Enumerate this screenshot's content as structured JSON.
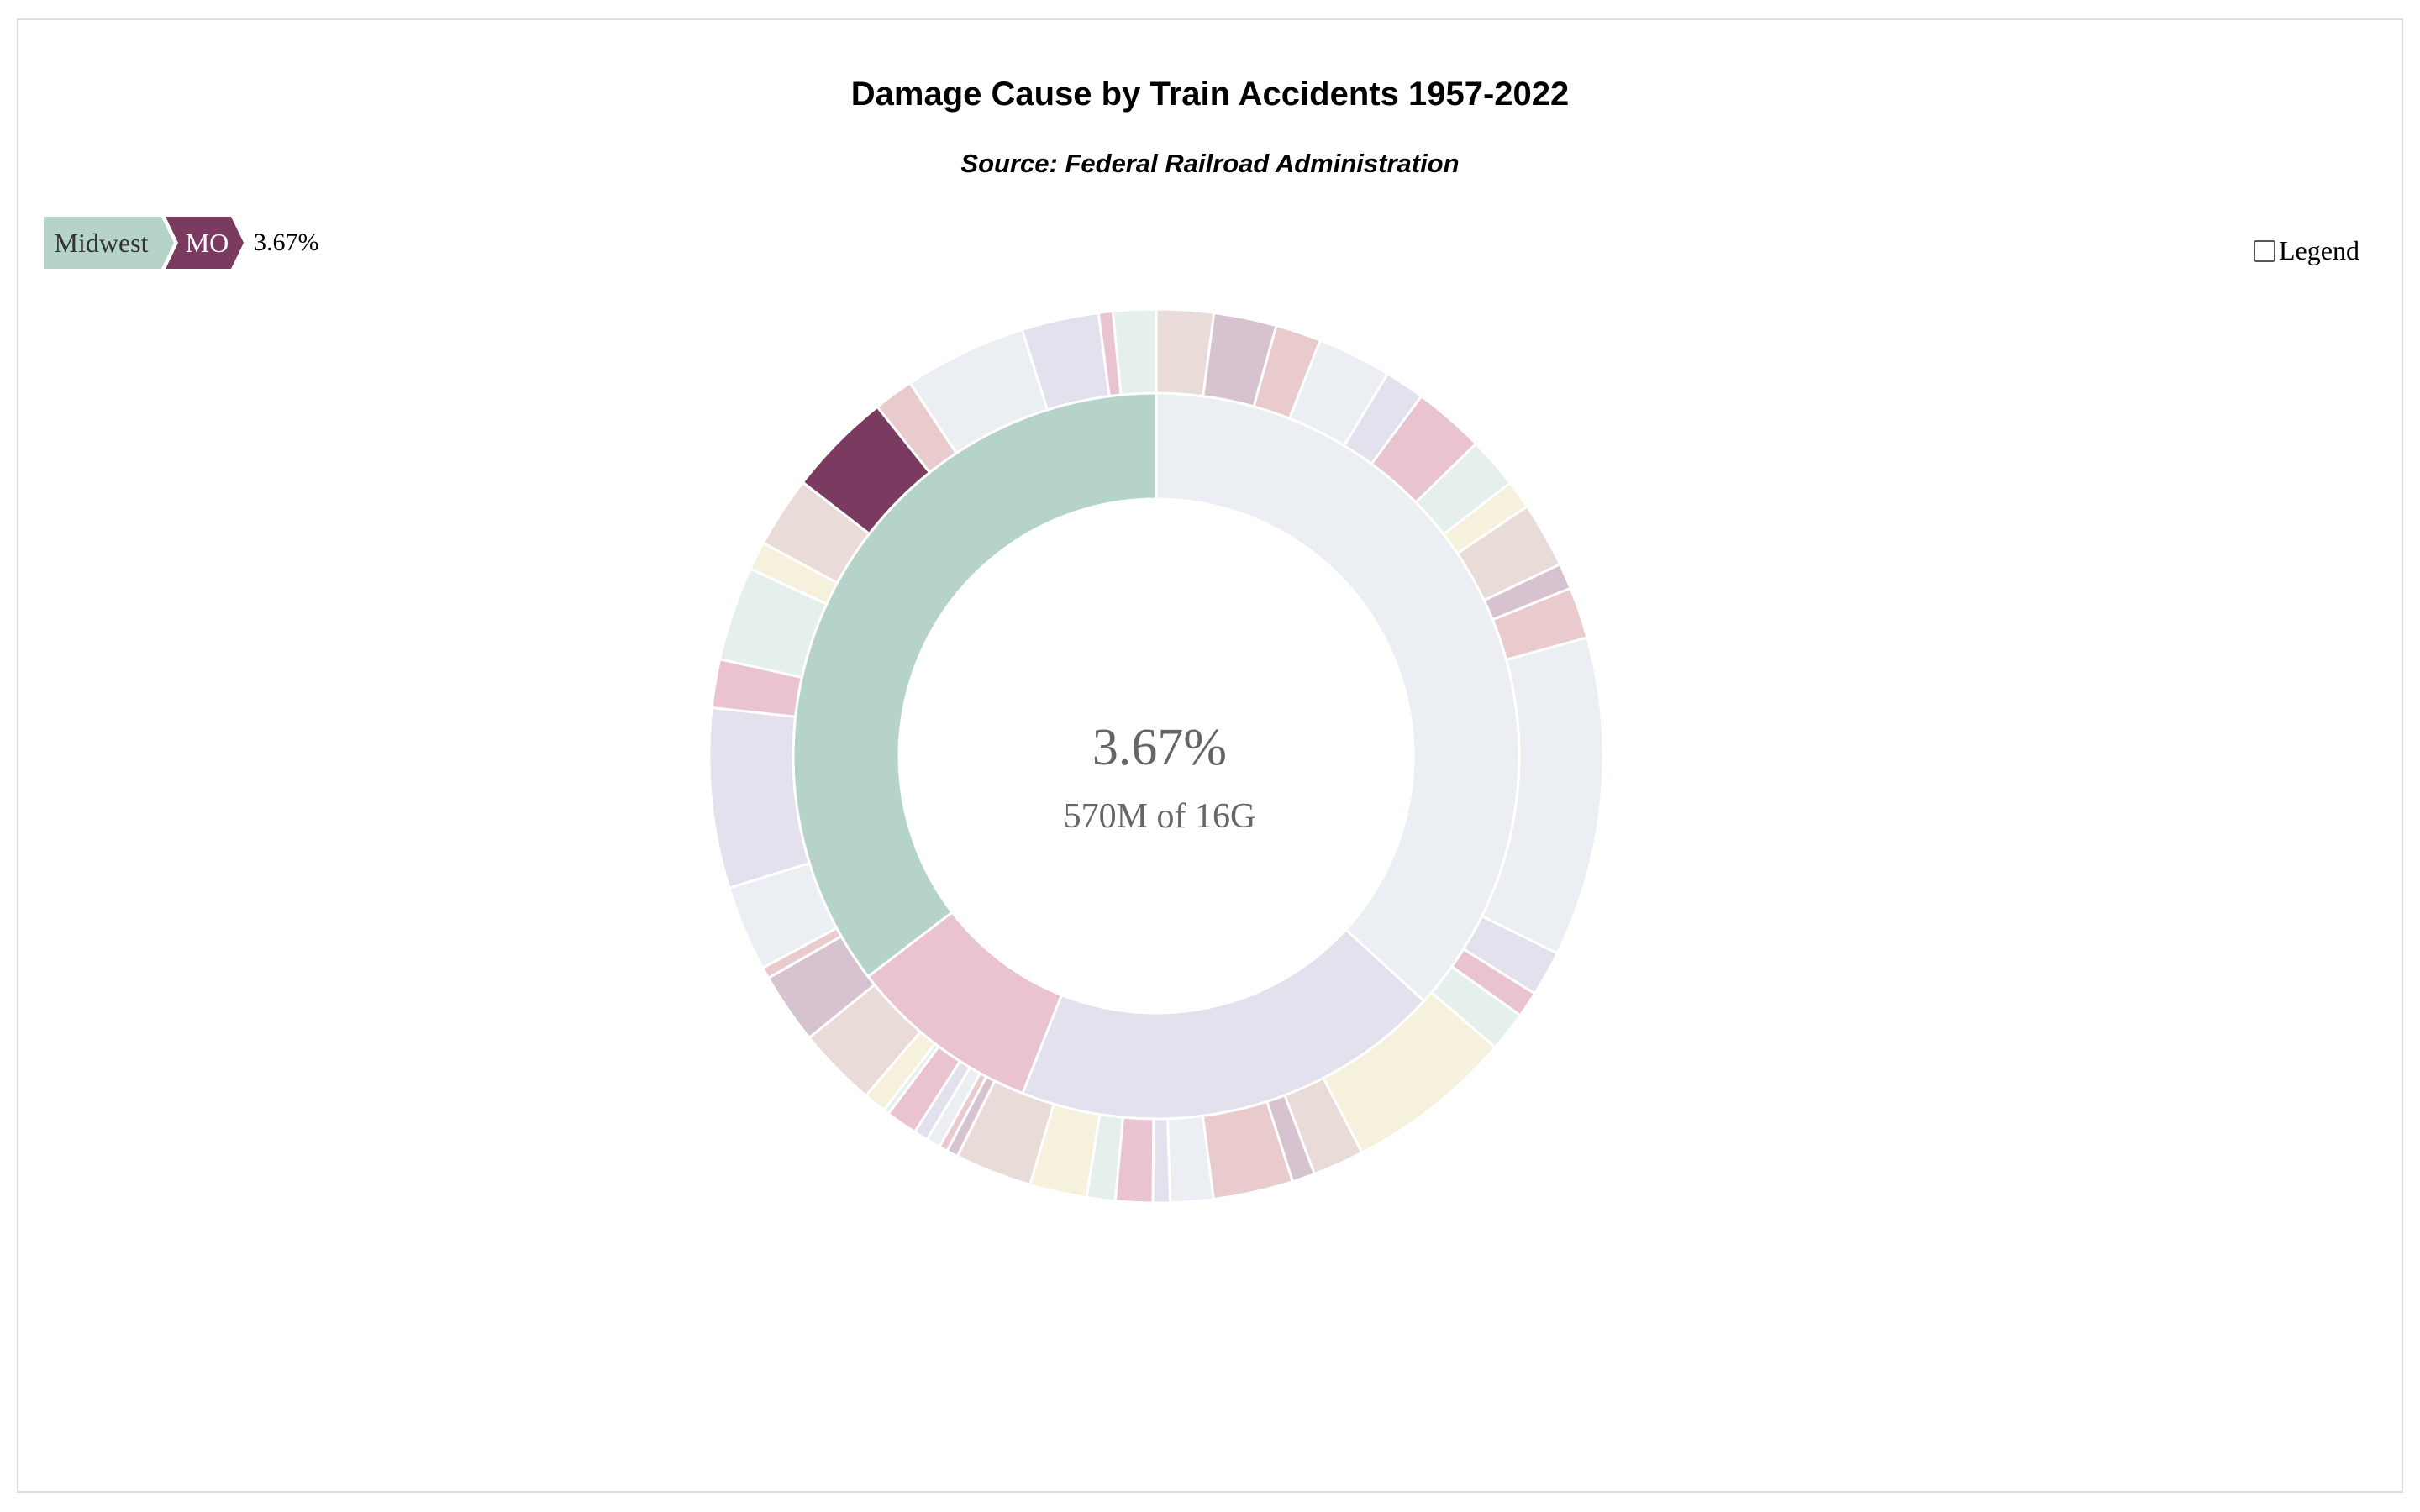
{
  "title": "Damage Cause by Train Accidents 1957-2022",
  "subtitle": "Source: Federal Railroad Administration",
  "breadcrumb": {
    "level1": "Midwest",
    "level2": "MO",
    "percent": "3.67%"
  },
  "legend_label": "Legend",
  "center": {
    "percent": "3.67%",
    "value_text": "570M of 16G"
  },
  "chart_data": {
    "type": "sunburst",
    "title": "Damage Cause by Train Accidents 1957-2022",
    "subtitle": "Source: Federal Railroad Administration",
    "total": "16G",
    "selected": {
      "path": [
        "Midwest",
        "MO"
      ],
      "value": "570M",
      "share_percent": 3.67
    },
    "inner_ring": [
      {
        "share": 0.368,
        "color": "#ebeef3"
      },
      {
        "share": 0.192,
        "color": "#e3e1ee"
      },
      {
        "share": 0.086,
        "color": "#e9c3d0"
      },
      {
        "name": "Midwest",
        "share": 0.354,
        "color": "#b6d3ca"
      }
    ],
    "outer_ring": [
      {
        "share": 0.02,
        "color": "#e9dbd8"
      },
      {
        "share": 0.022,
        "color": "#d7c2d0"
      },
      {
        "share": 0.016,
        "color": "#eacbcd"
      },
      {
        "share": 0.026,
        "color": "#ebeef3"
      },
      {
        "share": 0.014,
        "color": "#e3e1ee"
      },
      {
        "share": 0.025,
        "color": "#e9c3d0"
      },
      {
        "share": 0.018,
        "color": "#e5efec"
      },
      {
        "share": 0.01,
        "color": "#f6f1dc"
      },
      {
        "share": 0.023,
        "color": "#e9dbd8"
      },
      {
        "share": 0.009,
        "color": "#d7c2d0"
      },
      {
        "share": 0.018,
        "color": "#eacbcd"
      },
      {
        "share": 0.112,
        "color": "#ebeef3"
      },
      {
        "share": 0.016,
        "color": "#e3e1ee"
      },
      {
        "share": 0.009,
        "color": "#e9c3d0"
      },
      {
        "share": 0.014,
        "color": "#e5efec"
      },
      {
        "share": 0.059,
        "color": "#f6f1dc"
      },
      {
        "share": 0.018,
        "color": "#e9dbd8"
      },
      {
        "share": 0.008,
        "color": "#d7c2d0"
      },
      {
        "share": 0.028,
        "color": "#eacbcd"
      },
      {
        "share": 0.015,
        "color": "#ebeef3"
      },
      {
        "share": 0.006,
        "color": "#e3e1ee"
      },
      {
        "share": 0.013,
        "color": "#e9c3d0"
      },
      {
        "share": 0.01,
        "color": "#e5efec"
      },
      {
        "share": 0.02,
        "color": "#f6f1dc"
      },
      {
        "share": 0.027,
        "color": "#e9dbd8"
      },
      {
        "share": 0.004,
        "color": "#d7c2d0"
      },
      {
        "share": 0.003,
        "color": "#eacbcd"
      },
      {
        "share": 0.005,
        "color": "#ebeef3"
      },
      {
        "share": 0.005,
        "color": "#e3e1ee"
      },
      {
        "share": 0.011,
        "color": "#e9c3d0"
      },
      {
        "share": 0.002,
        "color": "#e5efec"
      },
      {
        "share": 0.008,
        "color": "#f6f1dc"
      },
      {
        "share": 0.028,
        "color": "#e9dbd8"
      },
      {
        "share": 0.025,
        "color": "#d7c2d0"
      },
      {
        "share": 0.004,
        "color": "#eacbcd"
      },
      {
        "share": 0.03,
        "color": "#ebeef3"
      },
      {
        "share": 0.063,
        "color": "#e3e1ee"
      },
      {
        "share": 0.017,
        "color": "#e9c3d0"
      },
      {
        "share": 0.033,
        "color": "#e5efec"
      },
      {
        "share": 0.01,
        "color": "#f6f1dc"
      },
      {
        "share": 0.025,
        "color": "#e9dbd8"
      },
      {
        "name": "MO",
        "share": 0.0367,
        "color": "#7b3b60"
      },
      {
        "share": 0.014,
        "color": "#eacbcd"
      },
      {
        "share": 0.043,
        "color": "#ebeef3"
      },
      {
        "share": 0.027,
        "color": "#e3e1ee"
      },
      {
        "share": 0.005,
        "color": "#e9c3d0"
      },
      {
        "share": 0.015,
        "color": "#e5efec"
      }
    ]
  }
}
